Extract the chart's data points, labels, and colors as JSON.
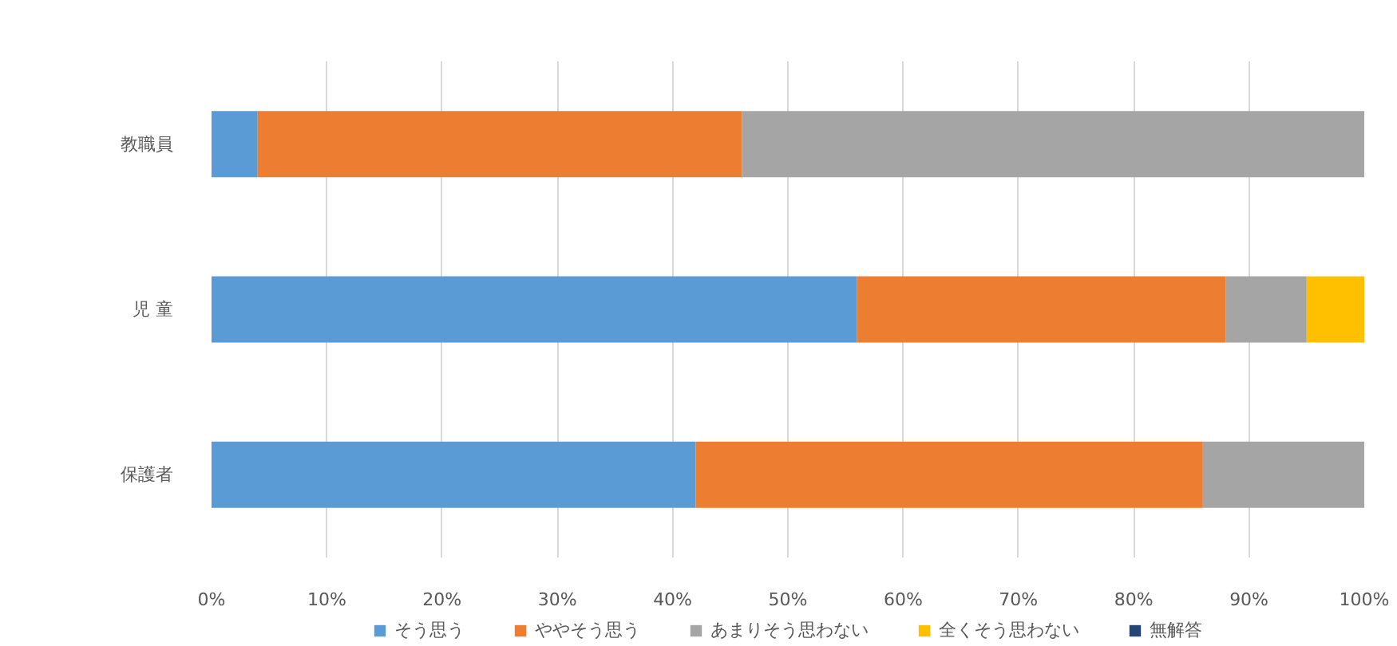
{
  "chart_data": {
    "type": "bar",
    "orientation": "horizontal",
    "stacked": true,
    "categories": [
      "教職員",
      "児 童",
      "保護者"
    ],
    "series": [
      {
        "name": "そう思う",
        "color": "#5b9bd5",
        "values": [
          4,
          56,
          42
        ]
      },
      {
        "name": "ややそう思う",
        "color": "#ed7d31",
        "values": [
          42,
          32,
          44
        ]
      },
      {
        "name": "あまりそう思わない",
        "color": "#a5a5a5",
        "values": [
          54,
          7,
          14
        ]
      },
      {
        "name": "全くそう思わない",
        "color": "#ffc000",
        "values": [
          0,
          5,
          0
        ]
      },
      {
        "name": "無解答",
        "color": "#264478",
        "values": [
          0,
          0,
          0
        ]
      }
    ],
    "xlim": [
      0,
      100
    ],
    "xticks": [
      {
        "value": 0,
        "label": "0%"
      },
      {
        "value": 10,
        "label": "10%"
      },
      {
        "value": 20,
        "label": "20%"
      },
      {
        "value": 30,
        "label": "30%"
      },
      {
        "value": 40,
        "label": "40%"
      },
      {
        "value": 50,
        "label": "50%"
      },
      {
        "value": 60,
        "label": "60%"
      },
      {
        "value": 70,
        "label": "70%"
      },
      {
        "value": 80,
        "label": "80%"
      },
      {
        "value": 90,
        "label": "90%"
      },
      {
        "value": 100,
        "label": "100%"
      }
    ],
    "grid": "x",
    "legend": "bottom"
  }
}
